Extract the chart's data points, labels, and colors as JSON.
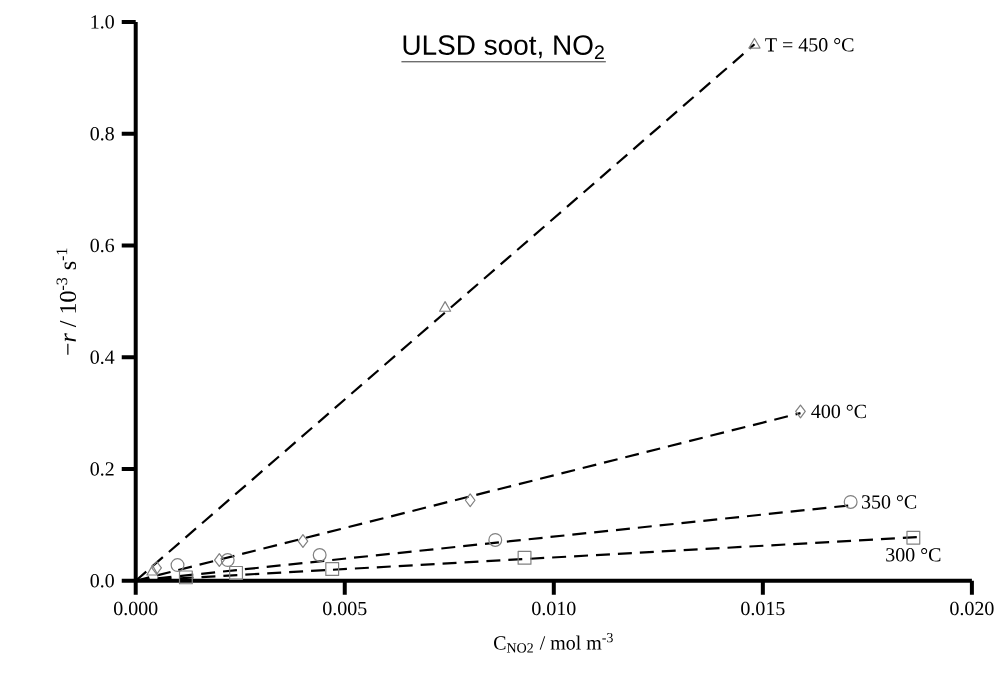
{
  "chart_data": {
    "type": "scatter",
    "title": "ULSD soot, NO$_{2}$",
    "xlabel": "C$_{NO2}$ / mol m$^{-3}$",
    "ylabel": "−*r*  / 10$^{-3}$ s$^{-1}$",
    "xlim": [
      0,
      0.02
    ],
    "ylim": [
      0,
      1.0
    ],
    "xticks": [
      {
        "value": 0,
        "label": "0.000"
      },
      {
        "value": 0.005,
        "label": "0.005"
      },
      {
        "value": 0.01,
        "label": "0.010"
      },
      {
        "value": 0.015,
        "label": "0.015"
      },
      {
        "value": 0.02,
        "label": "0.020"
      }
    ],
    "yticks": [
      {
        "value": 0,
        "label": "0.0"
      },
      {
        "value": 0.2,
        "label": "0.2"
      },
      {
        "value": 0.4,
        "label": "0.4"
      },
      {
        "value": 0.6,
        "label": "0.6"
      },
      {
        "value": 0.8,
        "label": "0.8"
      },
      {
        "value": 1.0,
        "label": "1.0"
      }
    ],
    "grid": false,
    "series": [
      {
        "name": "300 °C",
        "marker": "square",
        "color": "#808080",
        "x": [
          0.0012,
          0.0024,
          0.0047,
          0.0093,
          0.0186
        ],
        "values": [
          0.006,
          0.014,
          0.021,
          0.041,
          0.077
        ]
      },
      {
        "name": "350 °C",
        "marker": "circle",
        "color": "#808080",
        "x": [
          0.001,
          0.0022,
          0.0044,
          0.0086,
          0.0171
        ],
        "values": [
          0.028,
          0.037,
          0.046,
          0.073,
          0.141
        ]
      },
      {
        "name": "400 °C",
        "marker": "diamond",
        "color": "#808080",
        "x": [
          0.0005,
          0.002,
          0.004,
          0.008,
          0.0159
        ],
        "values": [
          0.023,
          0.037,
          0.071,
          0.144,
          0.303
        ]
      },
      {
        "name": "T = 450 °C",
        "marker": "triangle",
        "color": "#808080",
        "x": [
          0.0004,
          0.0074,
          0.0148
        ],
        "values": [
          0.016,
          0.488,
          0.959
        ]
      },
      {
        "type": "line",
        "line_style": "dashed",
        "marker": "none",
        "color": "#000000",
        "x": [
          0,
          0.0187
        ],
        "values": [
          0,
          0.078
        ]
      },
      {
        "type": "line",
        "line_style": "dashed",
        "marker": "none",
        "color": "#000000",
        "x": [
          0,
          0.0171
        ],
        "values": [
          0,
          0.135
        ]
      },
      {
        "type": "line",
        "line_style": "dashed",
        "marker": "none",
        "color": "#000000",
        "x": [
          0,
          0.0159
        ],
        "values": [
          0,
          0.3
        ]
      },
      {
        "type": "line",
        "line_style": "dashed",
        "marker": "none",
        "color": "#000000",
        "x": [
          0,
          0.0148
        ],
        "values": [
          0,
          0.96
        ]
      }
    ]
  }
}
